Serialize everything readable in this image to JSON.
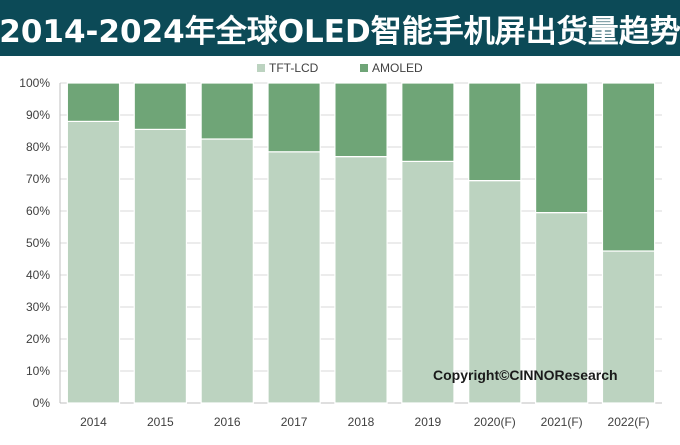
{
  "title": "2014-2024年全球OLED智能手机屏出货量趋势",
  "watermark": "Copyright©CINNOResearch",
  "colors": {
    "title_bg": "#0c4a57",
    "tft_lcd": "#bcd3c0",
    "amoled": "#6fa577",
    "grid": "#d9d9d9",
    "axis": "#bfbfbf"
  },
  "chart_data": {
    "type": "bar",
    "stacked": true,
    "percent": true,
    "title": "2014-2024年全球OLED智能手机屏出货量趋势",
    "xlabel": "",
    "ylabel": "",
    "ylim": [
      0,
      100
    ],
    "yticks": [
      "0%",
      "10%",
      "20%",
      "30%",
      "40%",
      "50%",
      "60%",
      "70%",
      "80%",
      "90%",
      "100%"
    ],
    "categories": [
      "2014",
      "2015",
      "2016",
      "2017",
      "2018",
      "2019",
      "2020(F)",
      "2021(F)",
      "2022(F)"
    ],
    "legend_position": "top-center",
    "series": [
      {
        "name": "TFT-LCD",
        "values": [
          88,
          85.5,
          82.5,
          78.5,
          77,
          75.5,
          69.5,
          59.5,
          47.5
        ]
      },
      {
        "name": "AMOLED",
        "values": [
          12,
          14.5,
          17.5,
          21.5,
          23,
          24.5,
          30.5,
          40.5,
          52.5
        ]
      }
    ],
    "grid": true
  }
}
